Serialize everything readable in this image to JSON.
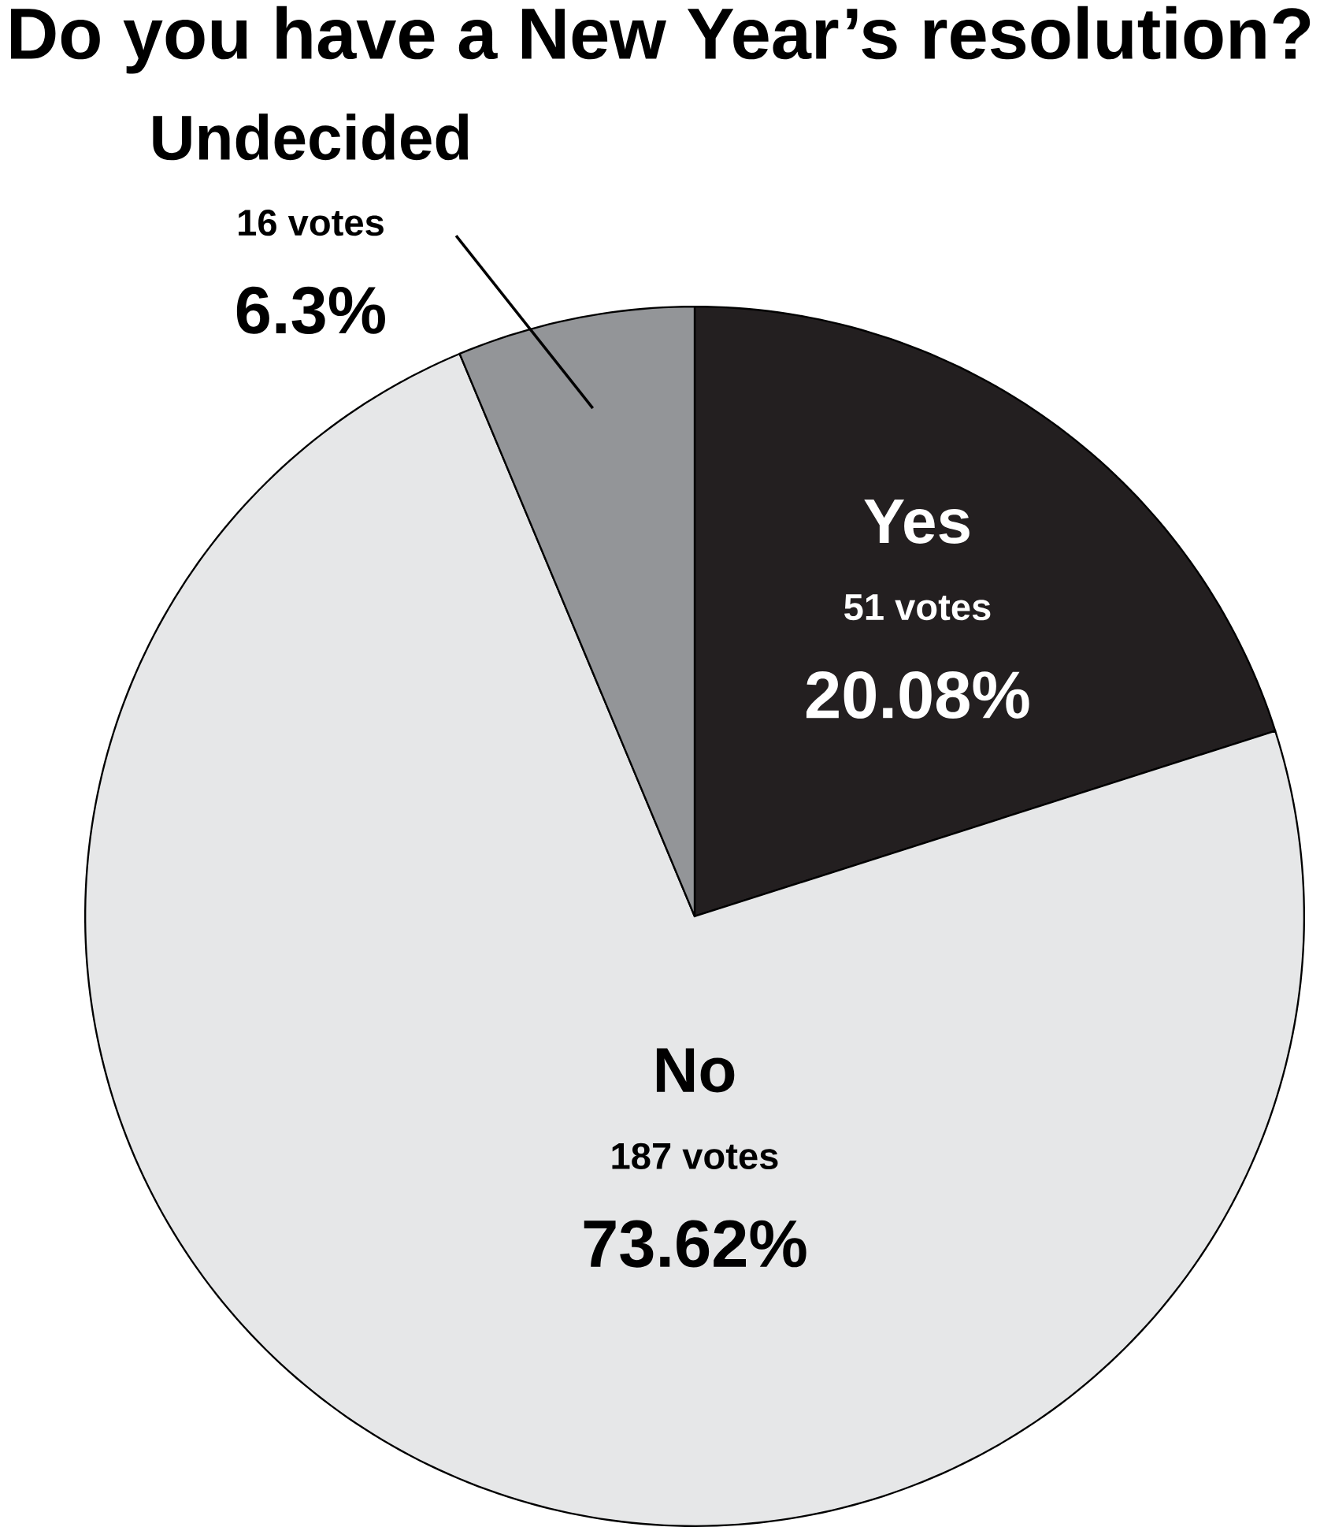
{
  "chart_data": {
    "type": "pie",
    "title": "Do you have a New Year’s resolution?",
    "categories": [
      "Yes",
      "No",
      "Undecided"
    ],
    "values": [
      20.08,
      73.62,
      6.3
    ],
    "value_labels": [
      "20.08%",
      "73.62%",
      "6.3%"
    ],
    "annotations": [
      "51 votes",
      "187 votes",
      "16 votes"
    ],
    "colors": [
      "#231f20",
      "#e6e7e8",
      "#939598"
    ]
  }
}
